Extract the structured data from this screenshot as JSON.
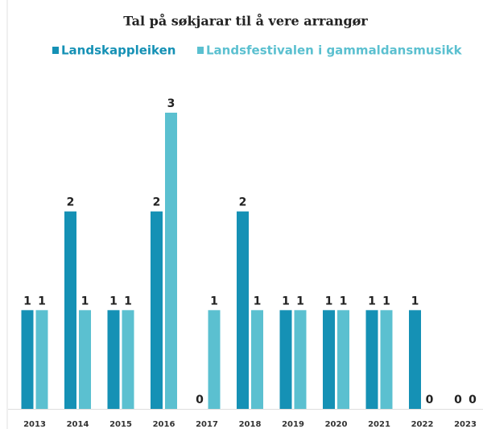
{
  "chart_data": {
    "type": "bar",
    "title": "Tal på søkjarar til å vere arrangør",
    "categories": [
      "2013",
      "2014",
      "2015",
      "2016",
      "2017",
      "2018",
      "2019",
      "2020",
      "2021",
      "2022",
      "2023"
    ],
    "series": [
      {
        "name": "Landskappleiken",
        "color": "#1591b5",
        "values": [
          1,
          2,
          1,
          2,
          0,
          2,
          1,
          1,
          1,
          1,
          0
        ]
      },
      {
        "name": "Landsfestivalen i gammaldansmusikk",
        "color": "#5bc0d0",
        "values": [
          1,
          1,
          1,
          3,
          1,
          1,
          1,
          1,
          1,
          0,
          0
        ]
      }
    ]
  }
}
